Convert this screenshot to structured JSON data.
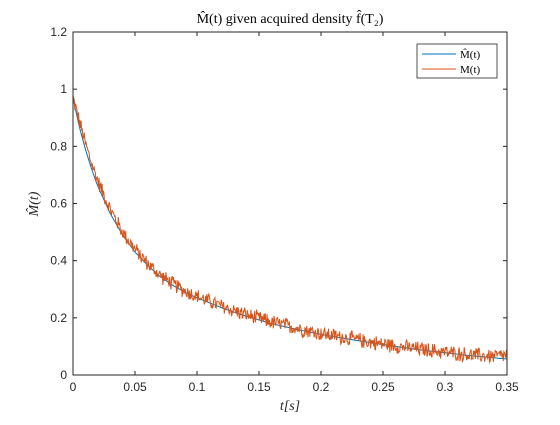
{
  "chart_data": {
    "type": "line",
    "title": "M̂(t) given acquired density f̂(T₂)",
    "xlabel": "t[s]",
    "ylabel": "M̂(t)",
    "xlim": [
      0,
      0.35
    ],
    "ylim": [
      0,
      1.2
    ],
    "xticks": [
      0,
      0.05,
      0.1,
      0.15,
      0.2,
      0.25,
      0.3,
      0.35
    ],
    "xtick_labels": [
      "0",
      "0.05",
      "0.1",
      "0.15",
      "0.2",
      "0.25",
      "0.3",
      "0.35"
    ],
    "yticks": [
      0,
      0.2,
      0.4,
      0.6,
      0.8,
      1,
      1.2
    ],
    "ytick_labels": [
      "0",
      "0.2",
      "0.4",
      "0.6",
      "0.8",
      "1",
      "1.2"
    ],
    "grid": false,
    "legend_position": "top-right",
    "series": [
      {
        "name": "M̂(t)",
        "color": "#0072BD",
        "x": [
          0,
          0.005,
          0.01,
          0.015,
          0.02,
          0.03,
          0.04,
          0.05,
          0.06,
          0.07,
          0.08,
          0.09,
          0.1,
          0.12,
          0.14,
          0.16,
          0.18,
          0.2,
          0.22,
          0.24,
          0.26,
          0.28,
          0.3,
          0.32,
          0.34,
          0.35
        ],
        "values": [
          0.97,
          0.87,
          0.79,
          0.72,
          0.66,
          0.565,
          0.49,
          0.43,
          0.385,
          0.345,
          0.315,
          0.29,
          0.27,
          0.235,
          0.205,
          0.18,
          0.16,
          0.142,
          0.127,
          0.113,
          0.1,
          0.088,
          0.078,
          0.068,
          0.06,
          0.056
        ]
      },
      {
        "name": "M(t)",
        "color": "#D95319",
        "x": [
          0,
          0.005,
          0.01,
          0.015,
          0.02,
          0.03,
          0.04,
          0.05,
          0.06,
          0.07,
          0.08,
          0.09,
          0.1,
          0.12,
          0.14,
          0.16,
          0.18,
          0.2,
          0.22,
          0.24,
          0.26,
          0.28,
          0.3,
          0.32,
          0.34,
          0.35
        ],
        "values": [
          0.97,
          0.89,
          0.81,
          0.74,
          0.68,
          0.58,
          0.5,
          0.44,
          0.39,
          0.35,
          0.32,
          0.295,
          0.275,
          0.24,
          0.21,
          0.185,
          0.165,
          0.145,
          0.13,
          0.115,
          0.102,
          0.09,
          0.08,
          0.07,
          0.065,
          0.07
        ],
        "noise_amplitude": 0.03
      }
    ]
  }
}
